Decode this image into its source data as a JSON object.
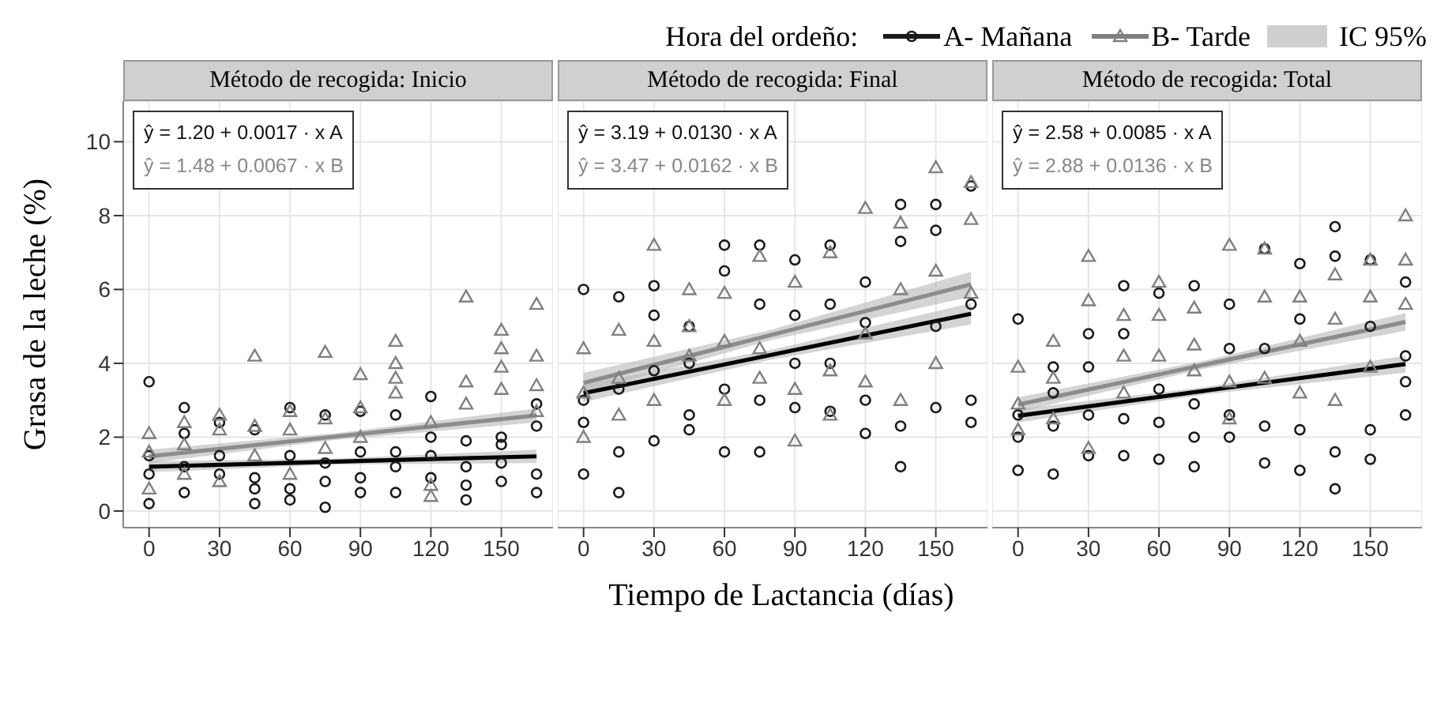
{
  "chart_data": [
    {
      "type": "scatter",
      "title": "Método de recogida: Inicio",
      "ylabel": "Grasa de la leche (%)",
      "legend": "top",
      "legend_title": "Hora del ordeño:",
      "xlim": [
        -11,
        172
      ],
      "xticks": [
        0,
        30,
        60,
        90,
        120,
        150
      ],
      "ylim": [
        -0.45,
        11.1
      ],
      "yticks": [
        0,
        2,
        4,
        6,
        8,
        10
      ],
      "grid": true,
      "annotations": [
        "ŷ = 1.20 + 0.0017 · x  A",
        "ŷ = 1.48 + 0.0067 · x  B",
        "IC 95%"
      ],
      "series": [
        {
          "name": "A- Mañana",
          "color": "#1a1a1a",
          "marker": "circle",
          "x": [
            0,
            0,
            0,
            0,
            15,
            15,
            15,
            15,
            30,
            30,
            30,
            45,
            45,
            45,
            45,
            60,
            60,
            60,
            60,
            75,
            75,
            75,
            75,
            90,
            90,
            90,
            90,
            105,
            105,
            105,
            105,
            120,
            120,
            120,
            120,
            135,
            135,
            135,
            135,
            150,
            150,
            150,
            150,
            165,
            165,
            165,
            165
          ],
          "values": [
            3.5,
            0.2,
            1.0,
            1.5,
            2.8,
            2.1,
            0.5,
            1.2,
            2.4,
            1.5,
            1.0,
            2.2,
            0.2,
            0.6,
            0.9,
            2.8,
            1.5,
            0.3,
            0.6,
            2.6,
            0.1,
            0.8,
            1.3,
            2.7,
            1.6,
            0.5,
            0.9,
            2.6,
            1.2,
            0.5,
            1.6,
            3.1,
            2.0,
            0.9,
            1.5,
            1.9,
            0.3,
            0.7,
            1.2,
            2.0,
            0.8,
            1.3,
            1.8,
            2.9,
            0.5,
            2.3,
            1.0
          ]
        },
        {
          "name": "B- Tarde",
          "color": "#808080",
          "marker": "triangle",
          "x": [
            0,
            0,
            0,
            15,
            15,
            15,
            30,
            30,
            30,
            45,
            45,
            45,
            60,
            60,
            60,
            75,
            75,
            75,
            90,
            90,
            90,
            105,
            105,
            105,
            105,
            120,
            120,
            120,
            135,
            135,
            135,
            150,
            150,
            150,
            150,
            165,
            165,
            165,
            165
          ],
          "values": [
            2.1,
            1.6,
            0.6,
            2.4,
            1.8,
            1.0,
            2.6,
            2.2,
            0.8,
            4.2,
            2.3,
            1.5,
            2.7,
            1.0,
            2.2,
            4.3,
            2.5,
            1.7,
            3.7,
            2.8,
            2.0,
            4.6,
            4.0,
            3.6,
            3.2,
            2.4,
            0.4,
            0.7,
            5.8,
            3.5,
            2.9,
            4.9,
            4.4,
            3.9,
            3.3,
            5.6,
            4.2,
            3.4,
            2.7
          ]
        },
        {
          "type": "line",
          "color": "#000000",
          "x": [
            0,
            80,
            165
          ],
          "values": [
            1.2,
            1.34,
            1.48
          ],
          "lower": [
            1.05,
            1.26,
            1.3
          ],
          "upper": [
            1.35,
            1.42,
            1.66
          ]
        },
        {
          "type": "line",
          "color": "#8c8c8c",
          "x": [
            0,
            80,
            165
          ],
          "values": [
            1.48,
            2.02,
            2.59
          ],
          "lower": [
            1.3,
            1.93,
            2.4
          ],
          "upper": [
            1.66,
            2.11,
            2.78
          ]
        }
      ]
    },
    {
      "type": "scatter",
      "title": "Método de recogida: Final",
      "xlabel": "Tiempo de Lactancia (días)",
      "tick_labels": "x",
      "xlim": [
        -11,
        172
      ],
      "xticks": [
        0,
        30,
        60,
        90,
        120,
        150
      ],
      "ylim": [
        -0.45,
        11.1
      ],
      "yticks": [
        0,
        2,
        4,
        6,
        8,
        10
      ],
      "grid": true,
      "annotations": [
        "ŷ = 3.19 + 0.0130 · x  A",
        "ŷ = 3.47 + 0.0162 · x  B"
      ],
      "series": [
        {
          "color": "#1a1a1a",
          "marker": "circle",
          "x": [
            0,
            0,
            0,
            0,
            15,
            15,
            15,
            15,
            30,
            30,
            30,
            30,
            45,
            45,
            45,
            45,
            60,
            60,
            60,
            60,
            75,
            75,
            75,
            75,
            90,
            90,
            90,
            90,
            105,
            105,
            105,
            105,
            120,
            120,
            120,
            120,
            135,
            135,
            135,
            135,
            150,
            150,
            150,
            150,
            165,
            165,
            165,
            165
          ],
          "values": [
            6.0,
            2.4,
            1.0,
            3.0,
            5.8,
            0.5,
            1.6,
            3.3,
            6.1,
            5.3,
            1.9,
            3.8,
            4.0,
            2.2,
            2.6,
            5.0,
            7.2,
            6.5,
            1.6,
            3.3,
            7.2,
            5.6,
            1.6,
            3.0,
            6.8,
            5.3,
            4.0,
            2.8,
            7.2,
            5.6,
            2.7,
            4.0,
            6.2,
            5.1,
            2.1,
            3.0,
            8.3,
            7.3,
            1.2,
            2.3,
            8.3,
            7.6,
            2.8,
            5.0,
            8.8,
            3.0,
            2.4,
            5.6
          ]
        },
        {
          "color": "#808080",
          "marker": "triangle",
          "x": [
            0,
            0,
            0,
            15,
            15,
            15,
            30,
            30,
            30,
            45,
            45,
            45,
            60,
            60,
            60,
            75,
            75,
            75,
            90,
            90,
            90,
            105,
            105,
            105,
            120,
            120,
            120,
            135,
            135,
            135,
            150,
            150,
            150,
            165,
            165,
            165
          ],
          "values": [
            4.4,
            2.0,
            3.2,
            4.9,
            2.6,
            3.6,
            7.2,
            4.6,
            3.0,
            6.0,
            5.0,
            4.2,
            5.9,
            4.6,
            3.0,
            6.9,
            4.4,
            3.6,
            6.2,
            1.9,
            3.3,
            7.0,
            3.8,
            2.6,
            8.2,
            4.8,
            3.5,
            7.8,
            6.0,
            3.0,
            9.3,
            6.5,
            4.0,
            8.9,
            7.9,
            5.9
          ]
        },
        {
          "type": "line",
          "color": "#000000",
          "x": [
            0,
            80,
            165
          ],
          "values": [
            3.19,
            4.23,
            5.34
          ],
          "lower": [
            2.95,
            4.1,
            5.05
          ],
          "upper": [
            3.43,
            4.36,
            5.63
          ]
        },
        {
          "type": "line",
          "color": "#8c8c8c",
          "x": [
            0,
            80,
            165
          ],
          "values": [
            3.47,
            4.77,
            6.14
          ],
          "lower": [
            3.2,
            4.63,
            5.8
          ],
          "upper": [
            3.74,
            4.91,
            6.48
          ]
        }
      ]
    },
    {
      "type": "scatter",
      "title": "Método de recogida: Total",
      "tick_labels": "x",
      "xlim": [
        -11,
        172
      ],
      "xticks": [
        0,
        30,
        60,
        90,
        120,
        150
      ],
      "ylim": [
        -0.45,
        11.1
      ],
      "yticks": [
        0,
        2,
        4,
        6,
        8,
        10
      ],
      "grid": true,
      "annotations": [
        "ŷ = 2.58 + 0.0085 · x  A",
        "ŷ = 2.88 + 0.0136 · x  B"
      ],
      "series": [
        {
          "color": "#1a1a1a",
          "marker": "circle",
          "x": [
            0,
            0,
            0,
            0,
            15,
            15,
            15,
            15,
            30,
            30,
            30,
            30,
            45,
            45,
            45,
            45,
            60,
            60,
            60,
            60,
            75,
            75,
            75,
            75,
            90,
            90,
            90,
            90,
            105,
            105,
            105,
            105,
            120,
            120,
            120,
            120,
            135,
            135,
            135,
            135,
            150,
            150,
            150,
            150,
            165,
            165,
            165,
            165
          ],
          "values": [
            5.2,
            1.1,
            2.0,
            2.6,
            3.9,
            1.0,
            2.3,
            3.2,
            4.8,
            3.9,
            1.5,
            2.6,
            6.1,
            4.8,
            1.5,
            2.5,
            5.9,
            1.4,
            2.4,
            3.3,
            6.1,
            1.2,
            2.0,
            2.9,
            5.6,
            4.4,
            2.0,
            2.6,
            7.1,
            4.4,
            1.3,
            2.3,
            6.7,
            5.2,
            1.1,
            2.2,
            7.7,
            6.9,
            0.6,
            1.6,
            6.8,
            2.2,
            5.0,
            1.4,
            6.2,
            2.6,
            4.2,
            3.5
          ]
        },
        {
          "color": "#808080",
          "marker": "triangle",
          "x": [
            0,
            0,
            0,
            15,
            15,
            15,
            30,
            30,
            30,
            45,
            45,
            45,
            60,
            60,
            60,
            75,
            75,
            75,
            90,
            90,
            90,
            105,
            105,
            105,
            120,
            120,
            120,
            135,
            135,
            135,
            150,
            150,
            150,
            165,
            165,
            165
          ],
          "values": [
            3.9,
            2.9,
            2.2,
            4.6,
            3.6,
            2.5,
            6.9,
            5.7,
            1.7,
            5.3,
            4.2,
            3.2,
            6.2,
            5.3,
            4.2,
            5.5,
            4.5,
            3.8,
            7.2,
            3.5,
            2.5,
            7.1,
            5.8,
            3.6,
            5.8,
            4.6,
            3.2,
            6.4,
            5.2,
            3.0,
            6.8,
            5.8,
            3.9,
            8.0,
            6.8,
            5.6
          ]
        },
        {
          "type": "line",
          "color": "#000000",
          "x": [
            0,
            80,
            165
          ],
          "values": [
            2.58,
            3.26,
            3.98
          ],
          "lower": [
            2.4,
            3.16,
            3.75
          ],
          "upper": [
            2.76,
            3.36,
            4.21
          ]
        },
        {
          "type": "line",
          "color": "#8c8c8c",
          "x": [
            0,
            80,
            165
          ],
          "values": [
            2.88,
            3.97,
            5.12
          ],
          "lower": [
            2.68,
            3.86,
            4.88
          ],
          "upper": [
            3.08,
            4.08,
            5.36
          ]
        }
      ]
    }
  ]
}
